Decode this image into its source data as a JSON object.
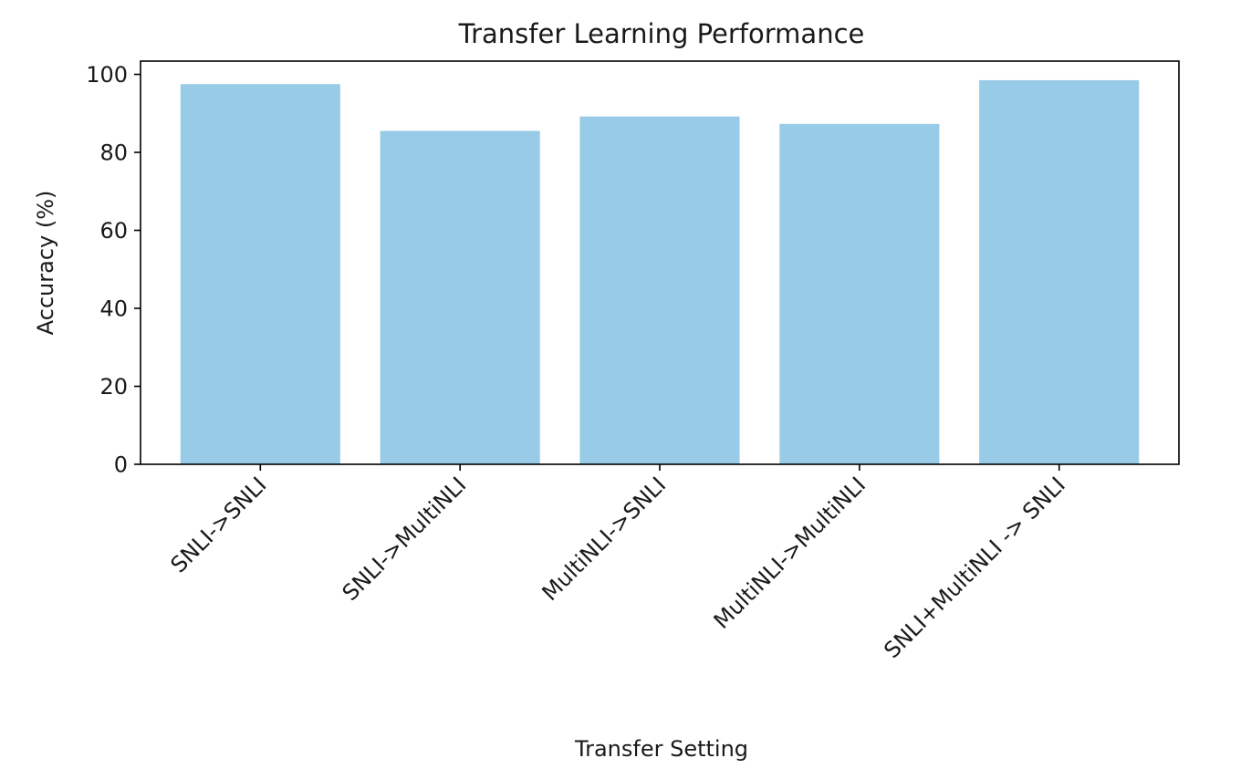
{
  "chart_data": {
    "type": "bar",
    "title": "Transfer Learning Performance",
    "xlabel": "Transfer Setting",
    "ylabel": "Accuracy (%)",
    "categories": [
      "SNLI->SNLI",
      "SNLI->MultiNLI",
      "MultiNLI->SNLI",
      "MultiNLI->MultiNLI",
      "SNLI+MultiNLI -> SNLI"
    ],
    "values": [
      97.5,
      85.5,
      89.2,
      87.3,
      98.5
    ],
    "ylim": [
      0,
      103.4
    ],
    "yticks": [
      0,
      20,
      40,
      60,
      80,
      100
    ],
    "bar_color": "#97cbe7",
    "grid": false,
    "legend": "none"
  }
}
